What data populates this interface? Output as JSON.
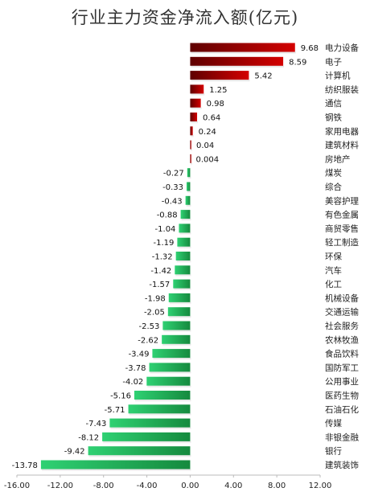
{
  "chart_data": {
    "type": "bar",
    "orientation": "horizontal",
    "title": "行业主力资金净流入额(亿元)",
    "categories": [
      "电力设备",
      "电子",
      "计算机",
      "纺织服装",
      "通信",
      "钢铁",
      "家用电器",
      "建筑材料",
      "房地产",
      "煤炭",
      "综合",
      "美容护理",
      "有色金属",
      "商贸零售",
      "轻工制造",
      "环保",
      "汽车",
      "化工",
      "机械设备",
      "交通运输",
      "社会服务",
      "农林牧渔",
      "食品饮料",
      "国防军工",
      "公用事业",
      "医药生物",
      "石油石化",
      "传媒",
      "非银金融",
      "银行",
      "建筑装饰"
    ],
    "values": [
      9.68,
      8.59,
      5.42,
      1.25,
      0.98,
      0.64,
      0.24,
      0.04,
      0.004,
      -0.27,
      -0.33,
      -0.43,
      -0.88,
      -1.04,
      -1.19,
      -1.32,
      -1.42,
      -1.57,
      -1.98,
      -2.05,
      -2.53,
      -2.62,
      -3.49,
      -3.78,
      -4.02,
      -5.16,
      -5.71,
      -7.43,
      -8.12,
      -9.42,
      -13.78
    ],
    "value_labels": [
      "9.68",
      "8.59",
      "5.42",
      "1.25",
      "0.98",
      "0.64",
      "0.24",
      "0.04",
      "0.004",
      "-0.27",
      "-0.33",
      "-0.43",
      "-0.88",
      "-1.04",
      "-1.19",
      "-1.32",
      "-1.42",
      "-1.57",
      "-1.98",
      "-2.05",
      "-2.53",
      "-2.62",
      "-3.49",
      "-3.78",
      "-4.02",
      "-5.16",
      "-5.71",
      "-7.43",
      "-8.12",
      "-9.42",
      "-13.78"
    ],
    "xlim": [
      -16,
      12
    ],
    "xticks": [
      -16,
      -12,
      -8,
      -4,
      0,
      4,
      8,
      12
    ],
    "xtick_labels": [
      "-16.00",
      "-12.00",
      "-8.00",
      "-4.00",
      "0.00",
      "4.00",
      "8.00",
      "12.00"
    ],
    "grid": false,
    "positive_color": "#d40000",
    "negative_color": "#22b85a"
  }
}
